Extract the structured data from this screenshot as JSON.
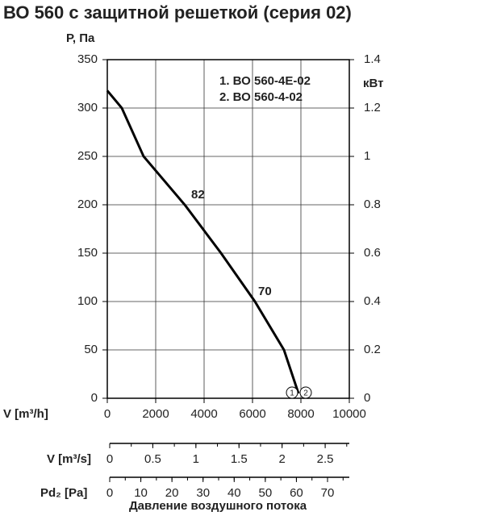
{
  "chart_data": {
    "type": "line",
    "title": "ВО 560 с защитной решеткой (серия 02)",
    "ylabel": "Р, Па",
    "y2label": "кВт",
    "xlabel": "V [m³/h]",
    "x": [
      0,
      600,
      1500,
      3200,
      4700,
      6100,
      7300,
      7900
    ],
    "series": [
      {
        "color": "#000000",
        "values": [
          318,
          300,
          250,
          200,
          150,
          100,
          50,
          5
        ]
      }
    ],
    "xlim": [
      0,
      10000
    ],
    "xticks": [
      0,
      2000,
      4000,
      6000,
      8000,
      10000
    ],
    "ylim": [
      0,
      350
    ],
    "yticks": [
      0,
      50,
      100,
      150,
      200,
      250,
      300,
      350
    ],
    "y2lim": [
      0,
      1.4
    ],
    "y2ticks": [
      0,
      0.2,
      0.4,
      0.6,
      0.8,
      1,
      1.2,
      1.4
    ],
    "grid": true,
    "legend": [
      "1. ВО 560-4Е-02",
      "2. ВО 560-4-02"
    ],
    "annotations": [
      "82",
      "70"
    ],
    "curve_markers": [
      "1",
      "2"
    ],
    "extra_axes": [
      {
        "label": "V [m³/s]",
        "xlim": [
          0,
          2.78
        ],
        "xticks": [
          0,
          0.5,
          1,
          1.5,
          2,
          2.5
        ]
      },
      {
        "label": "Pd₂ [Pa]",
        "xlim": [
          0,
          77
        ],
        "xticks": [
          0,
          10,
          20,
          30,
          40,
          50,
          60,
          70
        ]
      }
    ],
    "caption": "Давление воздушного потока"
  }
}
